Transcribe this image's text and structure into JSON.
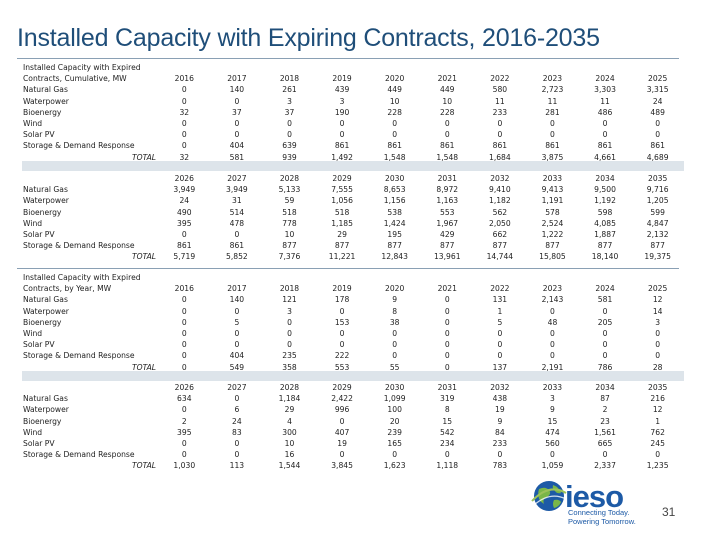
{
  "title": "Installed Capacity with Expiring Contracts, 2016-2035",
  "blocks": [
    {
      "header": [
        "Installed Capacity with Expired",
        "Contracts, Cumulative, MW"
      ],
      "years": [
        "2016",
        "2017",
        "2018",
        "2019",
        "2020",
        "2021",
        "2022",
        "2023",
        "2024",
        "2025"
      ],
      "rows": [
        {
          "label": "Natural Gas",
          "values": [
            "0",
            "140",
            "261",
            "439",
            "449",
            "449",
            "580",
            "2,723",
            "3,303",
            "3,315"
          ]
        },
        {
          "label": "Waterpower",
          "values": [
            "0",
            "0",
            "3",
            "3",
            "10",
            "10",
            "11",
            "11",
            "11",
            "24"
          ]
        },
        {
          "label": "Bioenergy",
          "values": [
            "32",
            "37",
            "37",
            "190",
            "228",
            "228",
            "233",
            "281",
            "486",
            "489"
          ]
        },
        {
          "label": "Wind",
          "values": [
            "0",
            "0",
            "0",
            "0",
            "0",
            "0",
            "0",
            "0",
            "0",
            "0"
          ]
        },
        {
          "label": "Solar PV",
          "values": [
            "0",
            "0",
            "0",
            "0",
            "0",
            "0",
            "0",
            "0",
            "0",
            "0"
          ]
        },
        {
          "label": "Storage & Demand Response",
          "values": [
            "0",
            "404",
            "639",
            "861",
            "861",
            "861",
            "861",
            "861",
            "861",
            "861"
          ]
        }
      ],
      "total_label": "TOTAL",
      "totals": [
        "32",
        "581",
        "939",
        "1,492",
        "1,548",
        "1,548",
        "1,684",
        "3,875",
        "4,661",
        "4,689"
      ]
    },
    {
      "header": [],
      "years": [
        "2026",
        "2027",
        "2028",
        "2029",
        "2030",
        "2031",
        "2032",
        "2033",
        "2034",
        "2035"
      ],
      "rows": [
        {
          "label": "Natural Gas",
          "values": [
            "3,949",
            "3,949",
            "5,133",
            "7,555",
            "8,653",
            "8,972",
            "9,410",
            "9,413",
            "9,500",
            "9,716"
          ]
        },
        {
          "label": "Waterpower",
          "values": [
            "24",
            "31",
            "59",
            "1,056",
            "1,156",
            "1,163",
            "1,182",
            "1,191",
            "1,192",
            "1,205"
          ]
        },
        {
          "label": "Bioenergy",
          "values": [
            "490",
            "514",
            "518",
            "518",
            "538",
            "553",
            "562",
            "578",
            "598",
            "599"
          ]
        },
        {
          "label": "Wind",
          "values": [
            "395",
            "478",
            "778",
            "1,185",
            "1,424",
            "1,967",
            "2,050",
            "2,524",
            "4,085",
            "4,847"
          ]
        },
        {
          "label": "Solar PV",
          "values": [
            "0",
            "0",
            "10",
            "29",
            "195",
            "429",
            "662",
            "1,222",
            "1,887",
            "2,132"
          ]
        },
        {
          "label": "Storage & Demand Response",
          "values": [
            "861",
            "861",
            "877",
            "877",
            "877",
            "877",
            "877",
            "877",
            "877",
            "877"
          ]
        }
      ],
      "total_label": "TOTAL",
      "totals": [
        "5,719",
        "5,852",
        "7,376",
        "11,221",
        "12,843",
        "13,961",
        "14,744",
        "15,805",
        "18,140",
        "19,375"
      ]
    },
    {
      "header": [
        "Installed Capacity with Expired",
        "Contracts, by Year, MW"
      ],
      "years": [
        "2016",
        "2017",
        "2018",
        "2019",
        "2020",
        "2021",
        "2022",
        "2023",
        "2024",
        "2025"
      ],
      "rows": [
        {
          "label": "Natural Gas",
          "values": [
            "0",
            "140",
            "121",
            "178",
            "9",
            "0",
            "131",
            "2,143",
            "581",
            "12"
          ]
        },
        {
          "label": "Waterpower",
          "values": [
            "0",
            "0",
            "3",
            "0",
            "8",
            "0",
            "1",
            "0",
            "0",
            "14"
          ]
        },
        {
          "label": "Bioenergy",
          "values": [
            "0",
            "5",
            "0",
            "153",
            "38",
            "0",
            "5",
            "48",
            "205",
            "3"
          ]
        },
        {
          "label": "Wind",
          "values": [
            "0",
            "0",
            "0",
            "0",
            "0",
            "0",
            "0",
            "0",
            "0",
            "0"
          ]
        },
        {
          "label": "Solar PV",
          "values": [
            "0",
            "0",
            "0",
            "0",
            "0",
            "0",
            "0",
            "0",
            "0",
            "0"
          ]
        },
        {
          "label": "Storage & Demand Response",
          "values": [
            "0",
            "404",
            "235",
            "222",
            "0",
            "0",
            "0",
            "0",
            "0",
            "0"
          ]
        }
      ],
      "total_label": "TOTAL",
      "totals": [
        "0",
        "549",
        "358",
        "553",
        "55",
        "0",
        "137",
        "2,191",
        "786",
        "28"
      ]
    },
    {
      "header": [],
      "years": [
        "2026",
        "2027",
        "2028",
        "2029",
        "2030",
        "2031",
        "2032",
        "2033",
        "2034",
        "2035"
      ],
      "rows": [
        {
          "label": "Natural Gas",
          "values": [
            "634",
            "0",
            "1,184",
            "2,422",
            "1,099",
            "319",
            "438",
            "3",
            "87",
            "216"
          ]
        },
        {
          "label": "Waterpower",
          "values": [
            "0",
            "6",
            "29",
            "996",
            "100",
            "8",
            "19",
            "9",
            "2",
            "12"
          ]
        },
        {
          "label": "Bioenergy",
          "values": [
            "2",
            "24",
            "4",
            "0",
            "20",
            "15",
            "9",
            "15",
            "23",
            "1"
          ]
        },
        {
          "label": "Wind",
          "values": [
            "395",
            "83",
            "300",
            "407",
            "239",
            "542",
            "84",
            "474",
            "1,561",
            "762"
          ]
        },
        {
          "label": "Solar PV",
          "values": [
            "0",
            "0",
            "10",
            "19",
            "165",
            "234",
            "233",
            "560",
            "665",
            "245"
          ]
        },
        {
          "label": "Storage & Demand Response",
          "values": [
            "0",
            "0",
            "16",
            "0",
            "0",
            "0",
            "0",
            "0",
            "0",
            "0"
          ]
        }
      ],
      "total_label": "TOTAL",
      "totals": [
        "1,030",
        "113",
        "1,544",
        "3,845",
        "1,623",
        "1,118",
        "783",
        "1,059",
        "2,337",
        "1,235"
      ]
    }
  ],
  "logo": {
    "brand": "ieso",
    "tagline_1": "Connecting Today.",
    "tagline_2": "Powering Tomorrow."
  },
  "page_number": "31",
  "colors": {
    "title": "#1f4e79",
    "brand": "#1d5aa6",
    "separator": "#dde4ea"
  }
}
